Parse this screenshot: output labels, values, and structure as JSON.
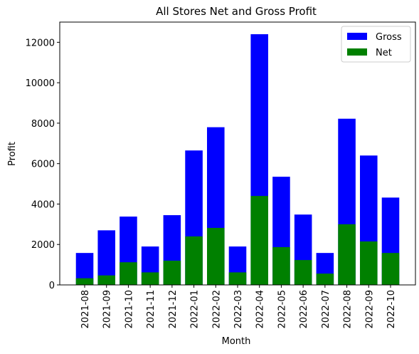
{
  "chart_data": {
    "type": "bar",
    "title": "All Stores Net and Gross Profit",
    "xlabel": "Month",
    "ylabel": "Profit",
    "categories": [
      "2021-08",
      "2021-09",
      "2021-10",
      "2021-11",
      "2021-12",
      "2022-01",
      "2022-02",
      "2022-03",
      "2022-04",
      "2022-05",
      "2022-06",
      "2022-07",
      "2022-08",
      "2022-09",
      "2022-10"
    ],
    "series": [
      {
        "name": "Gross",
        "color": "#0000ff",
        "values": [
          1580,
          2700,
          3380,
          1900,
          3450,
          6650,
          7800,
          1900,
          12400,
          5350,
          3480,
          1580,
          8220,
          6400,
          4320
        ]
      },
      {
        "name": "Net",
        "color": "#008000",
        "values": [
          330,
          470,
          1120,
          620,
          1200,
          2400,
          2820,
          620,
          4400,
          1870,
          1230,
          560,
          3000,
          2150,
          1580
        ]
      }
    ],
    "ylim": [
      0,
      13000
    ],
    "yticks": [
      0,
      2000,
      4000,
      6000,
      8000,
      10000,
      12000
    ],
    "legend": "upper right"
  }
}
